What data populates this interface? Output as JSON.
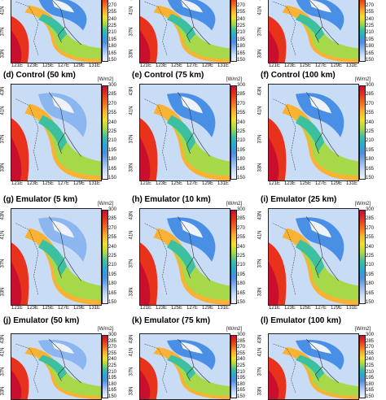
{
  "figure": {
    "units_label": "[W/m2]",
    "lat_labels": [
      "33N",
      "37N",
      "41N",
      "43N"
    ],
    "lon_labels": [
      "121E",
      "123E",
      "125E",
      "127E",
      "129E",
      "131E"
    ],
    "colorbar": {
      "ticks": [
        "300",
        "285",
        "270",
        "255",
        "240",
        "225",
        "210",
        "195",
        "180",
        "165",
        "150"
      ],
      "colors": [
        "#c8102e",
        "#e8321c",
        "#f26d21",
        "#f9b233",
        "#f4e02a",
        "#a6d94a",
        "#3cc0a0",
        "#2aa6d9",
        "#4a8fe6",
        "#8bb6ef",
        "#c9dcf5",
        "#eef3fb"
      ]
    },
    "panels": [
      {
        "title": "(d) Control (50 km)"
      },
      {
        "title": "(e) Control (75 km)"
      },
      {
        "title": "(f) Control (100 km)"
      },
      {
        "title": "(g) Emulator (5 km)"
      },
      {
        "title": "(h) Emulator (10 km)"
      },
      {
        "title": "(i) Emulator (25 km)"
      },
      {
        "title": "(j) Emulator (50 km)"
      },
      {
        "title": "(k) Emulator (75 km)"
      },
      {
        "title": "(l) Emulator (100 km)"
      }
    ]
  }
}
